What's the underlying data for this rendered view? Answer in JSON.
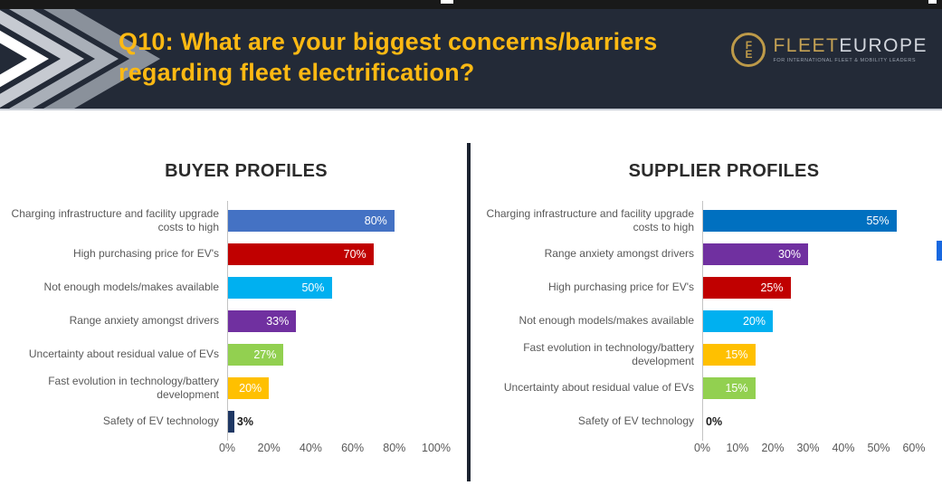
{
  "header": {
    "title": "Q10: What are your biggest concerns/barriers\nregarding fleet electrification?",
    "title_color": "#FDB913",
    "bg_color": "#232A37",
    "logo": {
      "monogram_top": "F",
      "monogram_bottom": "E",
      "brand_gold": "FLEET",
      "brand_light": "EUROPE",
      "tagline": "FOR INTERNATIONAL FLEET & MOBILITY LEADERS"
    }
  },
  "chart_data": [
    {
      "type": "bar",
      "orientation": "horizontal",
      "title": "BUYER PROFILES",
      "categories": [
        "Charging infrastructure and facility upgrade costs to high",
        "High purchasing price for EV's",
        "Not enough models/makes available",
        "Range anxiety amongst drivers",
        "Uncertainty about residual value of EVs",
        "Fast evolution in technology/battery development",
        "Safety of EV technology"
      ],
      "values": [
        80,
        70,
        50,
        33,
        27,
        20,
        3
      ],
      "value_labels": [
        "80%",
        "70%",
        "50%",
        "33%",
        "27%",
        "20%",
        "3%"
      ],
      "bar_colors": [
        "#4472C4",
        "#C00000",
        "#00B0F0",
        "#7030A0",
        "#92D050",
        "#FFC000",
        "#1F3864"
      ],
      "x_ticks": [
        "0%",
        "20%",
        "40%",
        "60%",
        "80%",
        "100%"
      ],
      "xlim": [
        0,
        100
      ],
      "grid": "off",
      "legend": "none"
    },
    {
      "type": "bar",
      "orientation": "horizontal",
      "title": "SUPPLIER PROFILES",
      "categories": [
        "Charging infrastructure and facility upgrade costs to high",
        "Range anxiety amongst drivers",
        "High purchasing price for EV's",
        "Not enough models/makes available",
        "Fast evolution in technology/battery development",
        "Uncertainty about residual value of EVs",
        "Safety of EV technology"
      ],
      "values": [
        55,
        30,
        25,
        20,
        15,
        15,
        0
      ],
      "value_labels": [
        "55%",
        "30%",
        "25%",
        "20%",
        "15%",
        "15%",
        "0%"
      ],
      "bar_colors": [
        "#0070C0",
        "#7030A0",
        "#C00000",
        "#00B0F0",
        "#FFC000",
        "#92D050",
        "#1F3864"
      ],
      "x_ticks": [
        "0%",
        "10%",
        "20%",
        "30%",
        "40%",
        "50%",
        "60%"
      ],
      "xlim": [
        0,
        60
      ],
      "grid": "off",
      "legend": "none"
    }
  ]
}
